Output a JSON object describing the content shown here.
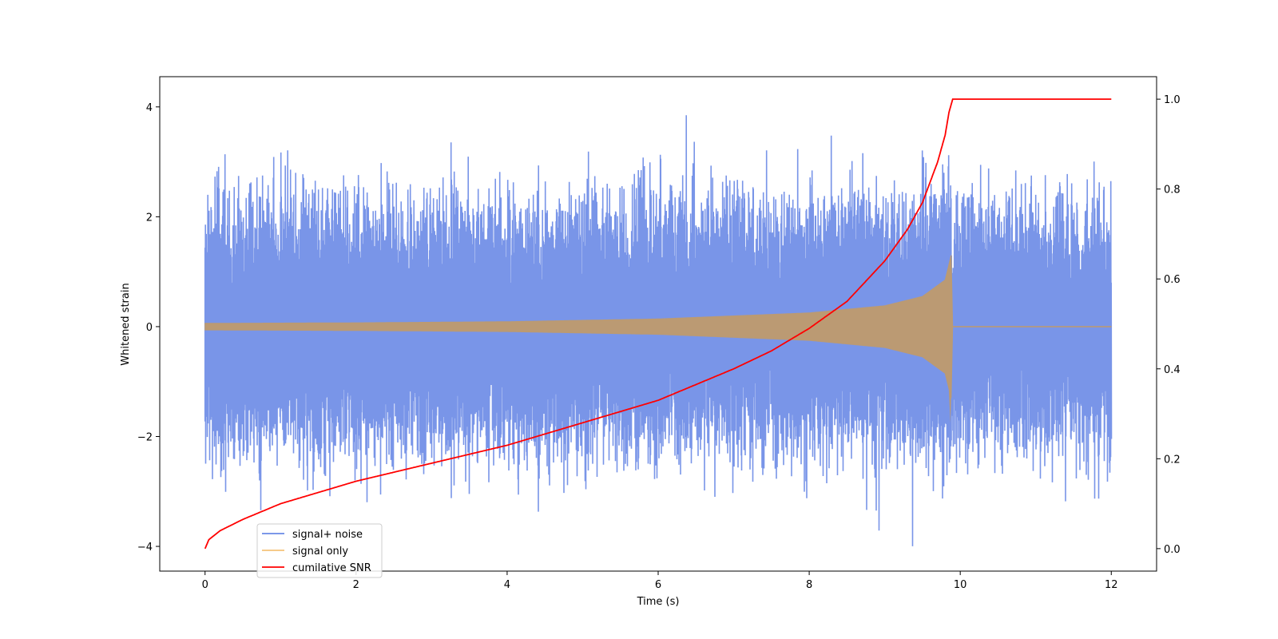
{
  "chart_data": {
    "type": "line",
    "xlabel": "Time (s)",
    "ylabel": "Whitened strain",
    "y2label": "",
    "xlim": [
      -0.6,
      12.6
    ],
    "ylim": [
      -4.45,
      4.55
    ],
    "y2lim": [
      -0.05,
      1.05
    ],
    "x_ticks": [
      0,
      2,
      4,
      6,
      8,
      10,
      12
    ],
    "y_ticks": [
      -4,
      -2,
      0,
      2,
      4
    ],
    "y2_ticks": [
      0.0,
      0.2,
      0.4,
      0.6,
      0.8,
      1.0
    ],
    "x_tick_labels": [
      "0",
      "2",
      "4",
      "6",
      "8",
      "10",
      "12"
    ],
    "y_tick_labels": [
      "−4",
      "−2",
      "0",
      "2",
      "4"
    ],
    "y2_tick_labels": [
      "0.0",
      "0.2",
      "0.4",
      "0.6",
      "0.8",
      "1.0"
    ],
    "legend_position": "lower-left",
    "grid": false,
    "series": [
      {
        "name": "signal+ noise",
        "color": "#6a89e6",
        "axis": "left",
        "x_range": [
          0,
          12
        ],
        "typical_range": [
          -1.6,
          1.6
        ],
        "extreme_range": [
          -4.0,
          4.15
        ]
      },
      {
        "name": "signal only",
        "color": "#f5c27a",
        "axis": "left",
        "description_points": {
          "x": [
            0,
            2,
            4,
            6,
            8,
            9,
            9.5,
            9.8,
            9.88,
            9.9,
            12
          ],
          "envelope": [
            0.06,
            0.07,
            0.09,
            0.14,
            0.25,
            0.38,
            0.55,
            0.85,
            1.3,
            0.0,
            0.0
          ]
        }
      },
      {
        "name": "cumilative SNR",
        "color": "#ff0000",
        "axis": "right",
        "x": [
          0,
          0.05,
          0.2,
          0.5,
          1,
          2,
          3,
          4,
          5,
          6,
          7,
          7.5,
          8,
          8.5,
          9,
          9.3,
          9.5,
          9.7,
          9.8,
          9.85,
          9.9,
          12
        ],
        "values": [
          0.0,
          0.02,
          0.04,
          0.065,
          0.1,
          0.15,
          0.19,
          0.23,
          0.28,
          0.33,
          0.4,
          0.44,
          0.49,
          0.55,
          0.64,
          0.71,
          0.77,
          0.86,
          0.92,
          0.97,
          1.0,
          1.0
        ]
      }
    ]
  }
}
